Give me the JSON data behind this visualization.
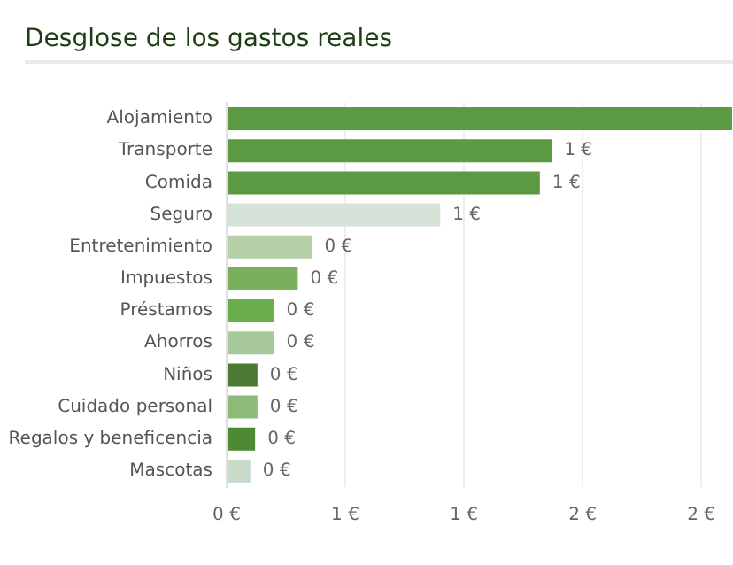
{
  "chart_data": {
    "type": "bar",
    "orientation": "horizontal",
    "title": "Desglose de los gastos reales",
    "categories": [
      "Alojamiento",
      "Transporte",
      "Comida",
      "Seguro",
      "Entretenimiento",
      "Impuestos",
      "Préstamos",
      "Ahorros",
      "Niños",
      "Cuidado personal",
      "Regalos y beneficencia",
      "Mascotas"
    ],
    "values": [
      2.13,
      1.37,
      1.32,
      0.9,
      0.36,
      0.3,
      0.2,
      0.2,
      0.13,
      0.13,
      0.12,
      0.1
    ],
    "value_labels": [
      null,
      "1 €",
      "1 €",
      "1 €",
      "0 €",
      "0 €",
      "0 €",
      "0 €",
      "0 €",
      "0 €",
      "0 €",
      "0 €"
    ],
    "colors": [
      "#5b9a43",
      "#5b9a43",
      "#5b9a43",
      "#d5e2d8",
      "#b5cfa9",
      "#79b05c",
      "#6aad4a",
      "#a8c99a",
      "#4b7a33",
      "#8cba78",
      "#4e8a35",
      "#c9dccb"
    ],
    "xlim": [
      0,
      2.13
    ],
    "xticks": [
      {
        "value": 0,
        "label": "0 €"
      },
      {
        "value": 0.5,
        "label": "1 €"
      },
      {
        "value": 1,
        "label": "1 €"
      },
      {
        "value": 1.5,
        "label": "2 €"
      },
      {
        "value": 2,
        "label": "2 €"
      }
    ],
    "grid": "x",
    "legend": false
  }
}
